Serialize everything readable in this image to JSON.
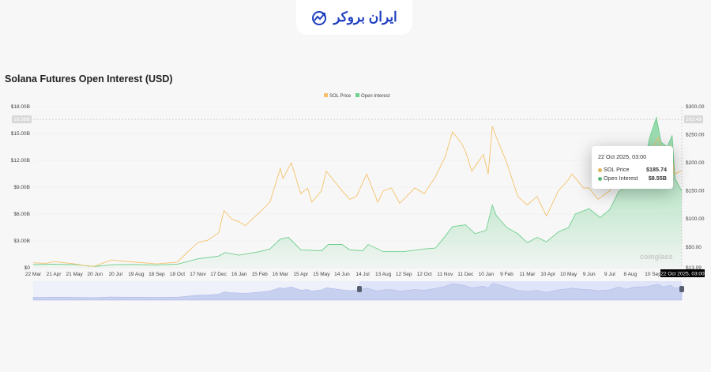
{
  "logo": {
    "text": "ایران بروکر"
  },
  "title": "Solana Futures Open Interest (USD)",
  "watermark": "coinglass",
  "colors": {
    "sol_price": "#f5c26b",
    "open_interest": "#6fcf8e",
    "navigator": "#c8d0f0",
    "crosshair_label_bg": "#000000"
  },
  "tooltip": {
    "date": "22 Oct 2025, 03:00",
    "rows": [
      {
        "label": "SOL Price",
        "value": "$185.74"
      },
      {
        "label": "Open Interest",
        "value": "$8.55B"
      }
    ]
  },
  "crosshair": {
    "left_label": "16.58B",
    "right_label": "263.49",
    "x_label": "22 Oct 2025, 03:00"
  },
  "chart_data": {
    "type": "line",
    "title": "Solana Futures Open Interest (USD)",
    "legend": [
      "SOL Price",
      "Open Interest"
    ],
    "legend_position": "top-center",
    "grid": true,
    "x_ticks": [
      "22 Mar",
      "21 Apr",
      "21 May",
      "20 Jun",
      "20 Jul",
      "19 Aug",
      "18 Sep",
      "18 Oct",
      "17 Nov",
      "17 Dec",
      "16 Jan",
      "15 Feb",
      "16 Mar",
      "15 Apr",
      "15 May",
      "14 Jun",
      "14 Jul",
      "13 Aug",
      "12 Sep",
      "12 Oct",
      "11 Nov",
      "11 Dec",
      "10 Jan",
      "9 Feb",
      "11 Mar",
      "10 Apr",
      "10 May",
      "9 Jun",
      "9 Jul",
      "8 Aug",
      "10 Sep"
    ],
    "x_tick_dates": [
      "2023-03-22",
      "2023-04-21",
      "2023-05-21",
      "2023-06-20",
      "2023-07-20",
      "2023-08-19",
      "2023-09-18",
      "2023-10-18",
      "2023-11-17",
      "2023-12-17",
      "2024-01-16",
      "2024-02-15",
      "2024-03-16",
      "2024-04-15",
      "2024-05-15",
      "2024-06-14",
      "2024-07-14",
      "2024-08-13",
      "2024-09-12",
      "2024-10-12",
      "2024-11-11",
      "2024-12-11",
      "2025-01-10",
      "2025-02-09",
      "2025-03-11",
      "2025-04-10",
      "2025-05-10",
      "2025-06-09",
      "2025-07-09",
      "2025-08-08",
      "2025-09-10"
    ],
    "x_range": [
      "2023-03-22",
      "2025-10-22"
    ],
    "y_left": {
      "ticks": [
        "$0",
        "$3.00B",
        "$6.00B",
        "$9.00B",
        "$12.00B",
        "$15.00B",
        "$18.00B"
      ],
      "values": [
        0,
        3,
        6,
        9,
        12,
        15,
        18
      ],
      "range": [
        0,
        18
      ],
      "unit": "B USD"
    },
    "y_right": {
      "ticks": [
        "$13.09",
        "$50.00",
        "$100.00",
        "$150.00",
        "$200.00",
        "$250.00",
        "$300.00"
      ],
      "values": [
        13.09,
        50,
        100,
        150,
        200,
        250,
        300
      ],
      "range": [
        13.09,
        300
      ]
    },
    "series": [
      {
        "name": "SOL Price",
        "axis": "right",
        "points": [
          [
            "2023-03-22",
            22
          ],
          [
            "2023-04-10",
            21
          ],
          [
            "2023-04-21",
            24
          ],
          [
            "2023-05-21",
            20
          ],
          [
            "2023-06-10",
            16
          ],
          [
            "2023-06-20",
            16
          ],
          [
            "2023-07-14",
            27
          ],
          [
            "2023-07-20",
            26
          ],
          [
            "2023-08-19",
            23
          ],
          [
            "2023-09-18",
            20
          ],
          [
            "2023-10-18",
            23
          ],
          [
            "2023-11-01",
            40
          ],
          [
            "2023-11-17",
            58
          ],
          [
            "2023-12-01",
            62
          ],
          [
            "2023-12-17",
            75
          ],
          [
            "2023-12-25",
            115
          ],
          [
            "2024-01-05",
            100
          ],
          [
            "2024-01-16",
            95
          ],
          [
            "2024-01-25",
            88
          ],
          [
            "2024-02-15",
            112
          ],
          [
            "2024-03-01",
            130
          ],
          [
            "2024-03-16",
            190
          ],
          [
            "2024-03-20",
            172
          ],
          [
            "2024-04-01",
            200
          ],
          [
            "2024-04-15",
            145
          ],
          [
            "2024-04-25",
            155
          ],
          [
            "2024-05-01",
            130
          ],
          [
            "2024-05-15",
            150
          ],
          [
            "2024-05-22",
            185
          ],
          [
            "2024-06-01",
            170
          ],
          [
            "2024-06-14",
            150
          ],
          [
            "2024-06-25",
            135
          ],
          [
            "2024-07-05",
            140
          ],
          [
            "2024-07-20",
            180
          ],
          [
            "2024-08-05",
            130
          ],
          [
            "2024-08-13",
            150
          ],
          [
            "2024-08-25",
            155
          ],
          [
            "2024-09-06",
            128
          ],
          [
            "2024-09-12",
            135
          ],
          [
            "2024-09-28",
            155
          ],
          [
            "2024-10-12",
            145
          ],
          [
            "2024-10-28",
            175
          ],
          [
            "2024-11-11",
            210
          ],
          [
            "2024-11-22",
            255
          ],
          [
            "2024-12-05",
            235
          ],
          [
            "2024-12-11",
            220
          ],
          [
            "2024-12-20",
            185
          ],
          [
            "2025-01-06",
            215
          ],
          [
            "2025-01-13",
            180
          ],
          [
            "2025-01-19",
            265
          ],
          [
            "2025-01-25",
            245
          ],
          [
            "2025-02-09",
            200
          ],
          [
            "2025-02-25",
            140
          ],
          [
            "2025-03-11",
            125
          ],
          [
            "2025-03-25",
            140
          ],
          [
            "2025-04-08",
            105
          ],
          [
            "2025-04-25",
            150
          ],
          [
            "2025-05-10",
            170
          ],
          [
            "2025-05-15",
            180
          ],
          [
            "2025-06-01",
            155
          ],
          [
            "2025-06-09",
            155
          ],
          [
            "2025-06-22",
            135
          ],
          [
            "2025-07-09",
            150
          ],
          [
            "2025-07-22",
            200
          ],
          [
            "2025-08-02",
            160
          ],
          [
            "2025-08-14",
            200
          ],
          [
            "2025-08-30",
            205
          ],
          [
            "2025-09-18",
            245
          ],
          [
            "2025-09-25",
            200
          ],
          [
            "2025-10-06",
            230
          ],
          [
            "2025-10-11",
            180
          ],
          [
            "2025-10-22",
            185.74
          ]
        ]
      },
      {
        "name": "Open Interest",
        "axis": "left",
        "points": [
          [
            "2023-03-22",
            0.35
          ],
          [
            "2023-04-21",
            0.4
          ],
          [
            "2023-05-21",
            0.35
          ],
          [
            "2023-06-20",
            0.15
          ],
          [
            "2023-07-20",
            0.35
          ],
          [
            "2023-08-19",
            0.35
          ],
          [
            "2023-09-18",
            0.3
          ],
          [
            "2023-10-18",
            0.4
          ],
          [
            "2023-11-17",
            1.0
          ],
          [
            "2023-12-17",
            1.3
          ],
          [
            "2023-12-27",
            1.7
          ],
          [
            "2024-01-16",
            1.4
          ],
          [
            "2024-02-15",
            1.8
          ],
          [
            "2024-03-01",
            2.1
          ],
          [
            "2024-03-16",
            3.2
          ],
          [
            "2024-03-28",
            3.4
          ],
          [
            "2024-04-15",
            2.0
          ],
          [
            "2024-05-15",
            1.9
          ],
          [
            "2024-05-25",
            2.6
          ],
          [
            "2024-06-14",
            2.6
          ],
          [
            "2024-06-25",
            2.0
          ],
          [
            "2024-07-14",
            1.9
          ],
          [
            "2024-07-22",
            2.6
          ],
          [
            "2024-08-13",
            1.8
          ],
          [
            "2024-09-12",
            1.8
          ],
          [
            "2024-10-12",
            2.1
          ],
          [
            "2024-10-28",
            2.2
          ],
          [
            "2024-11-11",
            3.5
          ],
          [
            "2024-11-22",
            4.6
          ],
          [
            "2024-12-11",
            4.8
          ],
          [
            "2024-12-25",
            3.8
          ],
          [
            "2025-01-10",
            4.2
          ],
          [
            "2025-01-19",
            7.0
          ],
          [
            "2025-01-25",
            5.8
          ],
          [
            "2025-02-09",
            4.5
          ],
          [
            "2025-02-25",
            3.8
          ],
          [
            "2025-03-11",
            2.8
          ],
          [
            "2025-03-25",
            3.4
          ],
          [
            "2025-04-08",
            2.9
          ],
          [
            "2025-04-25",
            4.0
          ],
          [
            "2025-05-10",
            4.5
          ],
          [
            "2025-05-20",
            6.0
          ],
          [
            "2025-06-09",
            6.6
          ],
          [
            "2025-06-25",
            5.6
          ],
          [
            "2025-07-09",
            6.5
          ],
          [
            "2025-07-22",
            8.5
          ],
          [
            "2025-08-08",
            9.5
          ],
          [
            "2025-08-25",
            10.2
          ],
          [
            "2025-09-05",
            14.5
          ],
          [
            "2025-09-15",
            16.8
          ],
          [
            "2025-09-22",
            14.0
          ],
          [
            "2025-10-01",
            13.5
          ],
          [
            "2025-10-08",
            14.8
          ],
          [
            "2025-10-12",
            10.0
          ],
          [
            "2025-10-22",
            8.55
          ]
        ]
      }
    ]
  }
}
